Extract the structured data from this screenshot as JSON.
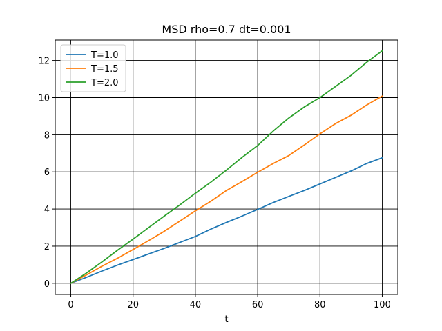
{
  "chart_data": {
    "type": "line",
    "title": "MSD rho=0.7 dt=0.001",
    "xlabel": "t",
    "ylabel": "",
    "xlim": [
      -5,
      105
    ],
    "ylim": [
      -0.6,
      13.1
    ],
    "xticks": [
      0,
      20,
      40,
      60,
      80,
      100
    ],
    "yticks": [
      0,
      2,
      4,
      6,
      8,
      10,
      12
    ],
    "grid": true,
    "grid_color": "#000000",
    "legend_position": "top-left",
    "series": [
      {
        "name": "T=1.0",
        "color": "#1f77b4",
        "x": [
          0,
          5,
          10,
          15,
          20,
          25,
          30,
          35,
          40,
          45,
          50,
          55,
          60,
          65,
          70,
          75,
          80,
          85,
          90,
          95,
          100
        ],
        "y": [
          0,
          0.32,
          0.66,
          0.98,
          1.28,
          1.58,
          1.88,
          2.2,
          2.52,
          2.92,
          3.28,
          3.62,
          3.98,
          4.35,
          4.68,
          5.0,
          5.35,
          5.7,
          6.05,
          6.45,
          6.76
        ]
      },
      {
        "name": "T=1.5",
        "color": "#ff7f0e",
        "x": [
          0,
          5,
          10,
          15,
          20,
          25,
          30,
          35,
          40,
          45,
          50,
          55,
          60,
          65,
          70,
          75,
          80,
          85,
          90,
          95,
          100
        ],
        "y": [
          0,
          0.45,
          0.92,
          1.35,
          1.82,
          2.3,
          2.8,
          3.35,
          3.9,
          4.42,
          5.0,
          5.48,
          5.98,
          6.45,
          6.88,
          7.45,
          8.05,
          8.6,
          9.05,
          9.6,
          10.08
        ]
      },
      {
        "name": "T=2.0",
        "color": "#2ca02c",
        "x": [
          0,
          5,
          10,
          15,
          20,
          25,
          30,
          35,
          40,
          45,
          50,
          55,
          60,
          65,
          70,
          75,
          80,
          85,
          90,
          95,
          100
        ],
        "y": [
          0,
          0.55,
          1.15,
          1.78,
          2.38,
          3.0,
          3.62,
          4.22,
          4.85,
          5.45,
          6.1,
          6.78,
          7.42,
          8.2,
          8.9,
          9.5,
          10.0,
          10.6,
          11.2,
          11.9,
          12.52
        ]
      }
    ]
  }
}
